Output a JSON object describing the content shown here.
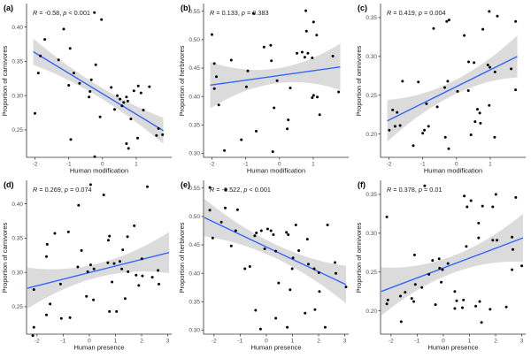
{
  "figure": {
    "background": "#ffffff",
    "panels_per_row": 3
  },
  "style": {
    "line_color": "#3366FF",
    "band_color": "#DBDBDB",
    "point_color": "#000000",
    "axis_color": "#333333",
    "tick_label_color": "#4d4d4d",
    "axis_title_color": "#1a1a1a"
  },
  "chart_data": [
    {
      "id": "a",
      "tag": "(a)",
      "type": "scatter",
      "stats": {
        "r_label": "R",
        "r_value": " = -0.58, ",
        "p_label": "p",
        "p_value": " < 0.001"
      },
      "xlabel": "Human modification",
      "ylabel": "Proportion of carnivores",
      "xlim": [
        -2.25,
        2.05
      ],
      "ylim": [
        0.21,
        0.433
      ],
      "xticks": [
        -2,
        -1,
        0,
        1
      ],
      "yticks": [
        0.25,
        0.3,
        0.35,
        0.4
      ],
      "y_decimals": 2,
      "legend": "none",
      "grid": false,
      "regression": {
        "x1": -2.05,
        "y1": 0.364,
        "x2": 1.8,
        "y2": 0.249,
        "band_mid": 0.008,
        "band_end": 0.019
      },
      "points": [
        [
          -0.24,
          0.421
        ],
        [
          -0.03,
          0.411
        ],
        [
          -1.15,
          0.397
        ],
        [
          -1.71,
          0.382
        ],
        [
          -0.96,
          0.369
        ],
        [
          -1.84,
          0.358
        ],
        [
          -1.3,
          0.352
        ],
        [
          -0.2,
          0.345
        ],
        [
          -1.9,
          0.333
        ],
        [
          -0.85,
          0.333
        ],
        [
          -0.33,
          0.323
        ],
        [
          -0.68,
          0.318
        ],
        [
          -1.0,
          0.315
        ],
        [
          0.26,
          0.312
        ],
        [
          1.06,
          0.314
        ],
        [
          1.39,
          0.313
        ],
        [
          0.93,
          0.307
        ],
        [
          -0.37,
          0.306
        ],
        [
          1.14,
          0.304
        ],
        [
          -0.4,
          0.298
        ],
        [
          0.71,
          0.298
        ],
        [
          0.52,
          0.295
        ],
        [
          0.75,
          0.292
        ],
        [
          0.58,
          0.285
        ],
        [
          0.36,
          0.28
        ],
        [
          -2.0,
          0.274
        ],
        [
          1.21,
          0.279
        ],
        [
          -0.07,
          0.269
        ],
        [
          0.84,
          0.266
        ],
        [
          1.66,
          0.252
        ],
        [
          -0.94,
          0.236
        ],
        [
          0.71,
          0.23
        ],
        [
          1.04,
          0.238
        ],
        [
          1.6,
          0.242
        ],
        [
          1.78,
          0.243
        ],
        [
          -0.23,
          0.211
        ],
        [
          0.77,
          0.223
        ],
        [
          0.44,
          0.3
        ],
        [
          0.63,
          0.29
        ]
      ]
    },
    {
      "id": "b",
      "tag": "(b)",
      "type": "scatter",
      "stats": {
        "r_label": "R",
        "r_value": " = 0.133, ",
        "p_label": "p",
        "p_value": " = 0.383"
      },
      "xlabel": "Human modification",
      "ylabel": "Proportion of herbivores",
      "xlim": [
        -2.25,
        2.05
      ],
      "ylim": [
        0.293,
        0.562
      ],
      "xticks": [
        -2,
        -1,
        0,
        1
      ],
      "yticks": [
        0.3,
        0.35,
        0.4,
        0.45,
        0.5,
        0.55
      ],
      "y_decimals": 2,
      "legend": "none",
      "grid": false,
      "regression": {
        "x1": -2.05,
        "y1": 0.42,
        "x2": 1.8,
        "y2": 0.452,
        "band_mid": 0.013,
        "band_end": 0.041
      },
      "points": [
        [
          0.78,
          0.551
        ],
        [
          -0.77,
          0.546
        ],
        [
          1.01,
          0.531
        ],
        [
          -2.0,
          0.509
        ],
        [
          0.8,
          0.515
        ],
        [
          1.1,
          0.508
        ],
        [
          -0.46,
          0.487
        ],
        [
          -0.26,
          0.49
        ],
        [
          0.67,
          0.478
        ],
        [
          0.52,
          0.476
        ],
        [
          0.84,
          0.476
        ],
        [
          -1.43,
          0.464
        ],
        [
          -1.93,
          0.458
        ],
        [
          -0.24,
          0.463
        ],
        [
          0.97,
          0.468
        ],
        [
          0.75,
          0.469
        ],
        [
          1.58,
          0.471
        ],
        [
          -0.94,
          0.445
        ],
        [
          -1.87,
          0.435
        ],
        [
          -0.07,
          0.428
        ],
        [
          -0.98,
          0.417
        ],
        [
          -1.93,
          0.414
        ],
        [
          0.32,
          0.415
        ],
        [
          1.75,
          0.408
        ],
        [
          0.97,
          0.398
        ],
        [
          1.01,
          0.402
        ],
        [
          1.12,
          0.399
        ],
        [
          -1.8,
          0.385
        ],
        [
          -0.16,
          0.38
        ],
        [
          1.19,
          0.368
        ],
        [
          0.26,
          0.359
        ],
        [
          -0.69,
          0.339
        ],
        [
          -1.13,
          0.324
        ],
        [
          0.23,
          0.343
        ],
        [
          -1.63,
          0.305
        ],
        [
          -0.2,
          0.303
        ]
      ]
    },
    {
      "id": "c",
      "tag": "(c)",
      "type": "scatter",
      "stats": {
        "r_label": "R",
        "r_value": " = 0.419, ",
        "p_label": "p",
        "p_value": " = 0.004"
      },
      "xlabel": "Human modification",
      "ylabel": "Proportion of omnivores",
      "xlim": [
        -2.25,
        2.05
      ],
      "ylim": [
        0.17,
        0.367
      ],
      "xticks": [
        -2,
        -1,
        0,
        1
      ],
      "yticks": [
        0.2,
        0.25,
        0.3,
        0.35
      ],
      "y_decimals": 2,
      "legend": "none",
      "grid": false,
      "regression": {
        "x1": -2.05,
        "y1": 0.217,
        "x2": 1.8,
        "y2": 0.3,
        "band_mid": 0.009,
        "band_end": 0.027
      },
      "points": [
        [
          0.97,
          0.358
        ],
        [
          1.21,
          0.352
        ],
        [
          -0.29,
          0.345
        ],
        [
          -0.22,
          0.347
        ],
        [
          1.75,
          0.345
        ],
        [
          -0.68,
          0.336
        ],
        [
          0.23,
          0.327
        ],
        [
          0.78,
          0.335
        ],
        [
          -1.6,
          0.268
        ],
        [
          -1.13,
          0.267
        ],
        [
          0.36,
          0.293
        ],
        [
          0.52,
          0.292
        ],
        [
          0.93,
          0.289
        ],
        [
          0.99,
          0.286
        ],
        [
          1.14,
          0.28
        ],
        [
          1.62,
          0.284
        ],
        [
          -0.26,
          0.268
        ],
        [
          -0.35,
          0.26
        ],
        [
          0.03,
          0.255
        ],
        [
          0.35,
          0.256
        ],
        [
          -0.89,
          0.239
        ],
        [
          -0.57,
          0.235
        ],
        [
          -1.89,
          0.231
        ],
        [
          -1.76,
          0.228
        ],
        [
          -1.99,
          0.205
        ],
        [
          -1.82,
          0.21
        ],
        [
          -1.67,
          0.211
        ],
        [
          -0.95,
          0.205
        ],
        [
          -1.0,
          0.201
        ],
        [
          -0.83,
          0.21
        ],
        [
          -0.33,
          0.196
        ],
        [
          -0.23,
          0.181
        ],
        [
          -1.28,
          0.185
        ],
        [
          0.62,
          0.232
        ],
        [
          0.69,
          0.227
        ],
        [
          0.55,
          0.216
        ],
        [
          0.71,
          0.214
        ],
        [
          0.97,
          0.237
        ],
        [
          1.13,
          0.196
        ],
        [
          0.43,
          0.199
        ],
        [
          1.75,
          0.257
        ]
      ]
    },
    {
      "id": "d",
      "tag": "(d)",
      "type": "scatter",
      "stats": {
        "r_label": "R",
        "r_value": " = 0.269, ",
        "p_label": "p",
        "p_value": " = 0.074"
      },
      "xlabel": "Human presence",
      "ylabel": "Proportion of carnivores",
      "xlim": [
        -2.4,
        3.15
      ],
      "ylim": [
        0.21,
        0.433
      ],
      "xticks": [
        -2,
        -1,
        0,
        1,
        2,
        3
      ],
      "yticks": [
        0.25,
        0.3,
        0.35,
        0.4
      ],
      "y_decimals": 2,
      "legend": "none",
      "grid": false,
      "regression": {
        "x1": -2.37,
        "y1": 0.277,
        "x2": 3.05,
        "y2": 0.329,
        "band_mid": 0.01,
        "band_end": 0.03
      },
      "points": [
        [
          0.05,
          0.428
        ],
        [
          2.22,
          0.425
        ],
        [
          0.55,
          0.413
        ],
        [
          -0.41,
          0.398
        ],
        [
          -1.32,
          0.357
        ],
        [
          -0.8,
          0.359
        ],
        [
          1.72,
          0.368
        ],
        [
          -1.61,
          0.341
        ],
        [
          0.77,
          0.353
        ],
        [
          1.46,
          0.352
        ],
        [
          0.73,
          0.347
        ],
        [
          -0.3,
          0.332
        ],
        [
          -1.64,
          0.323
        ],
        [
          1.28,
          0.333
        ],
        [
          2.01,
          0.32
        ],
        [
          -0.44,
          0.308
        ],
        [
          0.05,
          0.311
        ],
        [
          0.71,
          0.314
        ],
        [
          0.95,
          0.313
        ],
        [
          1.17,
          0.316
        ],
        [
          -0.06,
          0.301
        ],
        [
          0.18,
          0.305
        ],
        [
          1.24,
          0.305
        ],
        [
          1.48,
          0.301
        ],
        [
          2.63,
          0.303
        ],
        [
          1.79,
          0.296
        ],
        [
          2.03,
          0.295
        ],
        [
          2.41,
          0.293
        ],
        [
          0.87,
          0.286
        ],
        [
          -1.1,
          0.283
        ],
        [
          -2.12,
          0.275
        ],
        [
          1.89,
          0.281
        ],
        [
          2.66,
          0.283
        ],
        [
          -0.11,
          0.265
        ],
        [
          0.16,
          0.26
        ],
        [
          1.37,
          0.262
        ],
        [
          -1.5,
          0.254
        ],
        [
          0.77,
          0.243
        ],
        [
          1.04,
          0.243
        ],
        [
          -1.64,
          0.238
        ],
        [
          -1.07,
          0.233
        ],
        [
          -0.74,
          0.234
        ],
        [
          -2.12,
          0.22
        ],
        [
          -2.16,
          0.208
        ]
      ]
    },
    {
      "id": "e",
      "tag": "(e)",
      "type": "scatter",
      "stats": {
        "r_label": "R",
        "r_value": " = -0.522, ",
        "p_label": "p",
        "p_value": " < 0.001"
      },
      "xlabel": "Human presence",
      "ylabel": "Proportion of herbivores",
      "xlim": [
        -2.4,
        3.15
      ],
      "ylim": [
        0.293,
        0.562
      ],
      "xticks": [
        -2,
        -1,
        0,
        1,
        2,
        3
      ],
      "yticks": [
        0.3,
        0.35,
        0.4,
        0.45,
        0.5,
        0.55
      ],
      "y_decimals": 2,
      "legend": "none",
      "grid": false,
      "regression": {
        "x1": -2.37,
        "y1": 0.498,
        "x2": 3.05,
        "y2": 0.38,
        "band_mid": 0.012,
        "band_end": 0.033
      },
      "points": [
        [
          -2.16,
          0.551
        ],
        [
          -1.55,
          0.547
        ],
        [
          -2.16,
          0.511
        ],
        [
          -1.57,
          0.515
        ],
        [
          -1.1,
          0.512
        ],
        [
          -1.72,
          0.49
        ],
        [
          -2.05,
          0.462
        ],
        [
          -1.17,
          0.475
        ],
        [
          -0.38,
          0.471
        ],
        [
          -0.44,
          0.466
        ],
        [
          -0.19,
          0.475
        ],
        [
          0.05,
          0.478
        ],
        [
          0.18,
          0.475
        ],
        [
          0.27,
          0.468
        ],
        [
          0.77,
          0.472
        ],
        [
          0.84,
          0.468
        ],
        [
          1.13,
          0.485
        ],
        [
          1.57,
          0.46
        ],
        [
          2.34,
          0.485
        ],
        [
          -1.34,
          0.448
        ],
        [
          -0.06,
          0.443
        ],
        [
          0.36,
          0.439
        ],
        [
          1.24,
          0.44
        ],
        [
          1.02,
          0.427
        ],
        [
          -0.82,
          0.408
        ],
        [
          -0.63,
          0.412
        ],
        [
          0.99,
          0.408
        ],
        [
          1.61,
          0.416
        ],
        [
          1.83,
          0.408
        ],
        [
          2.01,
          0.401
        ],
        [
          2.66,
          0.4
        ],
        [
          0.47,
          0.383
        ],
        [
          0.91,
          0.371
        ],
        [
          2.03,
          0.368
        ],
        [
          2.63,
          0.419
        ],
        [
          3.05,
          0.376
        ],
        [
          1.48,
          0.33
        ],
        [
          0.36,
          0.321
        ],
        [
          -0.41,
          0.335
        ],
        [
          1.86,
          0.336
        ],
        [
          -0.22,
          0.302
        ],
        [
          0.8,
          0.305
        ],
        [
          2.25,
          0.305
        ]
      ]
    },
    {
      "id": "f",
      "tag": "(f)",
      "type": "scatter",
      "stats": {
        "r_label": "R",
        "r_value": " = 0.378, ",
        "p_label": "p",
        "p_value": " = 0.01"
      },
      "xlabel": "Human presence",
      "ylabel": "Proportion of omnivores",
      "xlim": [
        -2.4,
        3.15
      ],
      "ylim": [
        0.17,
        0.367
      ],
      "xticks": [
        -2,
        -1,
        0,
        1,
        2,
        3
      ],
      "yticks": [
        0.2,
        0.25,
        0.3,
        0.35
      ],
      "y_decimals": 2,
      "legend": "none",
      "grid": false,
      "regression": {
        "x1": -2.37,
        "y1": 0.225,
        "x2": 3.05,
        "y2": 0.294,
        "band_mid": 0.011,
        "band_end": 0.031
      },
      "points": [
        [
          -0.71,
          0.361
        ],
        [
          0.8,
          0.348
        ],
        [
          2.01,
          0.35
        ],
        [
          2.77,
          0.346
        ],
        [
          1.06,
          0.342
        ],
        [
          0.91,
          0.334
        ],
        [
          1.5,
          0.335
        ],
        [
          1.89,
          0.334
        ],
        [
          -2.16,
          0.321
        ],
        [
          1.35,
          0.313
        ],
        [
          1.35,
          0.294
        ],
        [
          1.89,
          0.291
        ],
        [
          2.05,
          0.291
        ],
        [
          2.63,
          0.295
        ],
        [
          0.88,
          0.283
        ],
        [
          2.66,
          0.279
        ],
        [
          -0.41,
          0.265
        ],
        [
          -0.16,
          0.267
        ],
        [
          0.18,
          0.261
        ],
        [
          -0.14,
          0.255
        ],
        [
          -0.03,
          0.253
        ],
        [
          -0.55,
          0.247
        ],
        [
          -1.1,
          0.272
        ],
        [
          -2.12,
          0.214
        ],
        [
          -2.16,
          0.209
        ],
        [
          -1.64,
          0.219
        ],
        [
          -1.46,
          0.224
        ],
        [
          -1.07,
          0.234
        ],
        [
          -0.82,
          0.23
        ],
        [
          -1.21,
          0.216
        ],
        [
          -1.13,
          0.212
        ],
        [
          -1.61,
          0.186
        ],
        [
          -0.3,
          0.208
        ],
        [
          -0.08,
          0.237
        ],
        [
          0.44,
          0.225
        ],
        [
          0.51,
          0.213
        ],
        [
          0.77,
          0.214
        ],
        [
          0.44,
          0.203
        ],
        [
          0.73,
          0.204
        ],
        [
          1.24,
          0.206
        ],
        [
          1.39,
          0.212
        ],
        [
          1.46,
          0.185
        ],
        [
          1.79,
          0.202
        ],
        [
          2.41,
          0.205
        ],
        [
          2.63,
          0.253
        ],
        [
          3.0,
          0.258
        ]
      ]
    }
  ]
}
